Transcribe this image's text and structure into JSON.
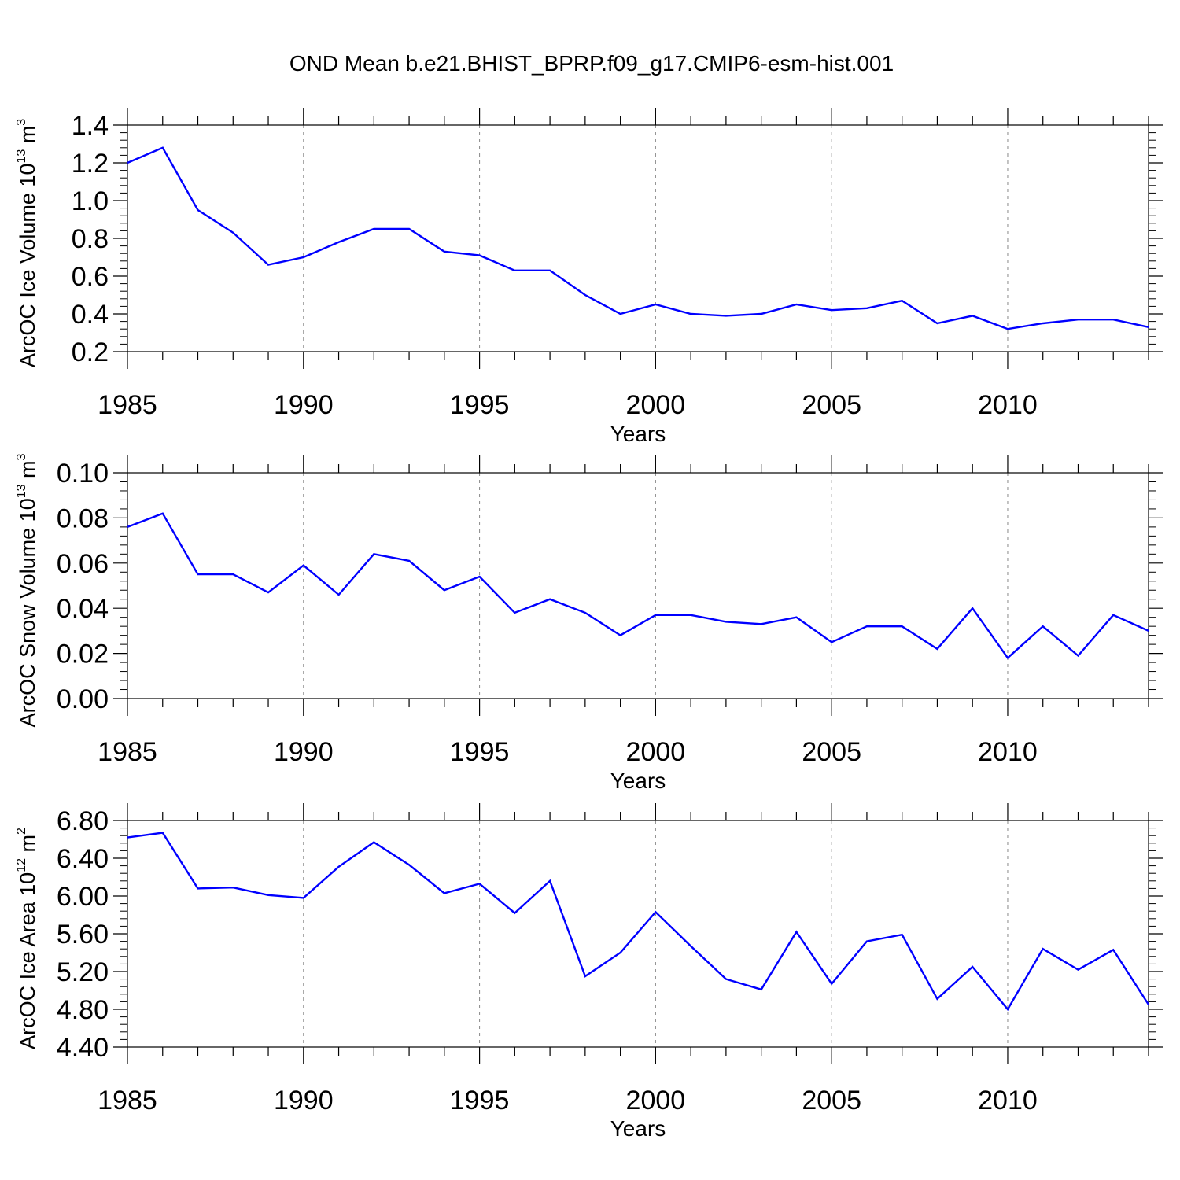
{
  "title": "OND Mean b.e21.BHIST_BPRP.f09_g17.CMIP6-esm-hist.001",
  "colors": {
    "series": "#0000ff",
    "axis": "#000000",
    "grid": "#888888"
  },
  "chart_data": [
    {
      "type": "line",
      "xlabel": "Years",
      "ylabel_main": "ArcOC Ice Volume 10",
      "ylabel_exp": "13",
      "ylabel_unit": " m",
      "ylabel_unit_exp": "3",
      "xlim": [
        1985,
        2014
      ],
      "ylim": [
        0.2,
        1.4
      ],
      "yticks": [
        "0.2",
        "0.4",
        "0.6",
        "0.8",
        "1.0",
        "1.2",
        "1.4"
      ],
      "xticks": [
        "1985",
        "1990",
        "1995",
        "2000",
        "2005",
        "2010"
      ],
      "x": [
        1985,
        1986,
        1987,
        1988,
        1989,
        1990,
        1991,
        1992,
        1993,
        1994,
        1995,
        1996,
        1997,
        1998,
        1999,
        2000,
        2001,
        2002,
        2003,
        2004,
        2005,
        2006,
        2007,
        2008,
        2009,
        2010,
        2011,
        2012,
        2013,
        2014
      ],
      "values": [
        1.2,
        1.28,
        0.95,
        0.83,
        0.66,
        0.7,
        0.78,
        0.85,
        0.85,
        0.73,
        0.71,
        0.63,
        0.63,
        0.5,
        0.4,
        0.45,
        0.4,
        0.39,
        0.4,
        0.45,
        0.42,
        0.43,
        0.47,
        0.35,
        0.39,
        0.32,
        0.35,
        0.37,
        0.37,
        0.33
      ],
      "grid_x": true
    },
    {
      "type": "line",
      "xlabel": "Years",
      "ylabel_main": "ArcOC Snow Volume 10",
      "ylabel_exp": "13",
      "ylabel_unit": " m",
      "ylabel_unit_exp": "3",
      "xlim": [
        1985,
        2014
      ],
      "ylim": [
        0.0,
        0.1
      ],
      "yticks": [
        "0.00",
        "0.02",
        "0.04",
        "0.06",
        "0.08",
        "0.10"
      ],
      "xticks": [
        "1985",
        "1990",
        "1995",
        "2000",
        "2005",
        "2010"
      ],
      "x": [
        1985,
        1986,
        1987,
        1988,
        1989,
        1990,
        1991,
        1992,
        1993,
        1994,
        1995,
        1996,
        1997,
        1998,
        1999,
        2000,
        2001,
        2002,
        2003,
        2004,
        2005,
        2006,
        2007,
        2008,
        2009,
        2010,
        2011,
        2012,
        2013,
        2014
      ],
      "values": [
        0.076,
        0.082,
        0.055,
        0.055,
        0.047,
        0.059,
        0.046,
        0.064,
        0.061,
        0.048,
        0.054,
        0.038,
        0.044,
        0.038,
        0.028,
        0.037,
        0.037,
        0.034,
        0.033,
        0.036,
        0.025,
        0.032,
        0.032,
        0.022,
        0.04,
        0.018,
        0.032,
        0.019,
        0.037,
        0.03
      ],
      "grid_x": true
    },
    {
      "type": "line",
      "xlabel": "Years",
      "ylabel_main": "ArcOC Ice Area 10",
      "ylabel_exp": "12",
      "ylabel_unit": " m",
      "ylabel_unit_exp": "2",
      "xlim": [
        1985,
        2014
      ],
      "ylim": [
        4.4,
        6.8
      ],
      "yticks": [
        "4.40",
        "4.80",
        "5.20",
        "5.60",
        "6.00",
        "6.40",
        "6.80"
      ],
      "xticks": [
        "1985",
        "1990",
        "1995",
        "2000",
        "2005",
        "2010"
      ],
      "x": [
        1985,
        1986,
        1987,
        1988,
        1989,
        1990,
        1991,
        1992,
        1993,
        1994,
        1995,
        1996,
        1997,
        1998,
        1999,
        2000,
        2001,
        2002,
        2003,
        2004,
        2005,
        2006,
        2007,
        2008,
        2009,
        2010,
        2011,
        2012,
        2013,
        2014
      ],
      "values": [
        6.62,
        6.67,
        6.08,
        6.09,
        6.01,
        5.98,
        6.31,
        6.57,
        6.33,
        6.03,
        6.13,
        5.82,
        6.16,
        5.15,
        5.4,
        5.83,
        5.47,
        5.12,
        5.01,
        5.62,
        5.07,
        5.52,
        5.59,
        4.91,
        5.25,
        4.8,
        5.44,
        5.22,
        5.43,
        4.85
      ],
      "grid_x": true
    }
  ]
}
